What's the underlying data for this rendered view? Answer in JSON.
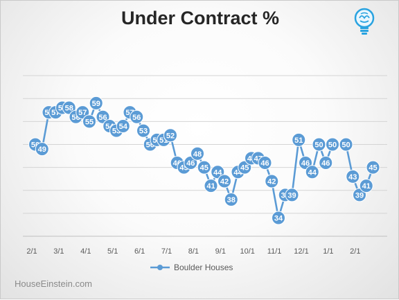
{
  "title": "Under Contract %",
  "watermark": "HouseEinstein.com",
  "logo_icon": "lightbulb-brain-icon",
  "chart_data": {
    "type": "line",
    "title": "Under Contract %",
    "xlabel": "",
    "ylabel": "",
    "ylim": [
      30,
      70
    ],
    "y_gridlines": [
      35,
      40,
      45,
      50,
      55,
      60,
      65
    ],
    "y_tick_labels_shown": false,
    "x_tick_labels": [
      "2/1",
      "3/1",
      "4/1",
      "5/1",
      "6/1",
      "7/1",
      "8/1",
      "9/1",
      "10/1",
      "11/1",
      "12/1",
      "1/1",
      "2/1"
    ],
    "legend": "bottom",
    "grid": true,
    "color": "#5b9bd5",
    "series": [
      {
        "name": "Boulder Houses",
        "values": [
          50,
          49,
          57,
          57,
          58,
          58,
          56,
          57,
          55,
          59,
          56,
          54,
          53,
          54,
          57,
          56,
          53,
          50,
          51,
          51,
          52,
          46,
          45,
          46,
          48,
          45,
          41,
          44,
          42,
          38,
          44,
          45,
          47,
          47,
          46,
          42,
          34,
          39,
          39,
          51,
          46,
          44,
          50,
          46,
          50,
          null,
          50,
          43,
          39,
          41,
          45
        ]
      }
    ]
  }
}
